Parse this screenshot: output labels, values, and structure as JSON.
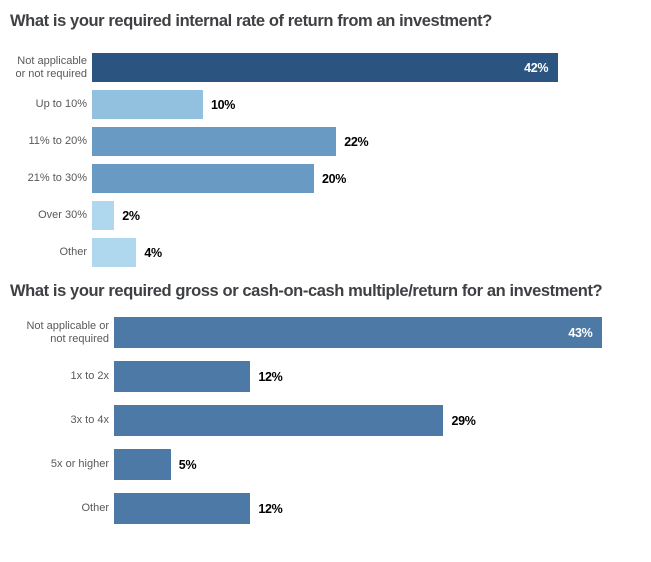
{
  "page": {
    "background": "#ffffff"
  },
  "colors": {
    "title_text": "#3e4043",
    "category_text": "#595959",
    "value_text_outside": "#000000",
    "value_text_inside": "#ffffff",
    "navy": "#2b5580",
    "medium_blue": "#689ac4",
    "light_blue": "#92c1e0",
    "lighter_blue": "#afd7ee",
    "steel_blue": "#4d79a7"
  },
  "chart_data": [
    {
      "type": "bar",
      "orientation": "horizontal",
      "title": "What is your required internal rate of return from an investment?",
      "xlabel": "",
      "ylabel": "",
      "xlim": [
        0,
        50
      ],
      "grid": false,
      "legend": "none",
      "categories": [
        "Not applicable or not required",
        "Up to 10%",
        "11% to 20%",
        "21% to 30%",
        "Over 30%",
        "Other"
      ],
      "values": [
        42,
        10,
        22,
        20,
        2,
        4
      ],
      "value_labels": [
        "42%",
        "10%",
        "22%",
        "20%",
        "2%",
        "4%"
      ],
      "bar_colors": [
        "#2b5580",
        "#92c1e0",
        "#689ac4",
        "#689ac4",
        "#afd7ee",
        "#afd7ee"
      ],
      "value_label_inside": [
        true,
        false,
        false,
        false,
        false,
        false
      ]
    },
    {
      "type": "bar",
      "orientation": "horizontal",
      "title": "What is your required gross or cash-on-cash multiple/return for an investment?",
      "xlabel": "",
      "ylabel": "",
      "xlim": [
        0,
        50
      ],
      "grid": false,
      "legend": "none",
      "categories": [
        "Not applicable or not required",
        "1x to 2x",
        "3x to 4x",
        "5x or higher",
        "Other"
      ],
      "values": [
        43,
        12,
        29,
        5,
        12
      ],
      "value_labels": [
        "43%",
        "12%",
        "29%",
        "5%",
        "12%"
      ],
      "bar_colors": [
        "#4d79a7",
        "#4d79a7",
        "#4d79a7",
        "#4d79a7",
        "#4d79a7"
      ],
      "value_label_inside": [
        true,
        false,
        false,
        false,
        false
      ]
    }
  ]
}
